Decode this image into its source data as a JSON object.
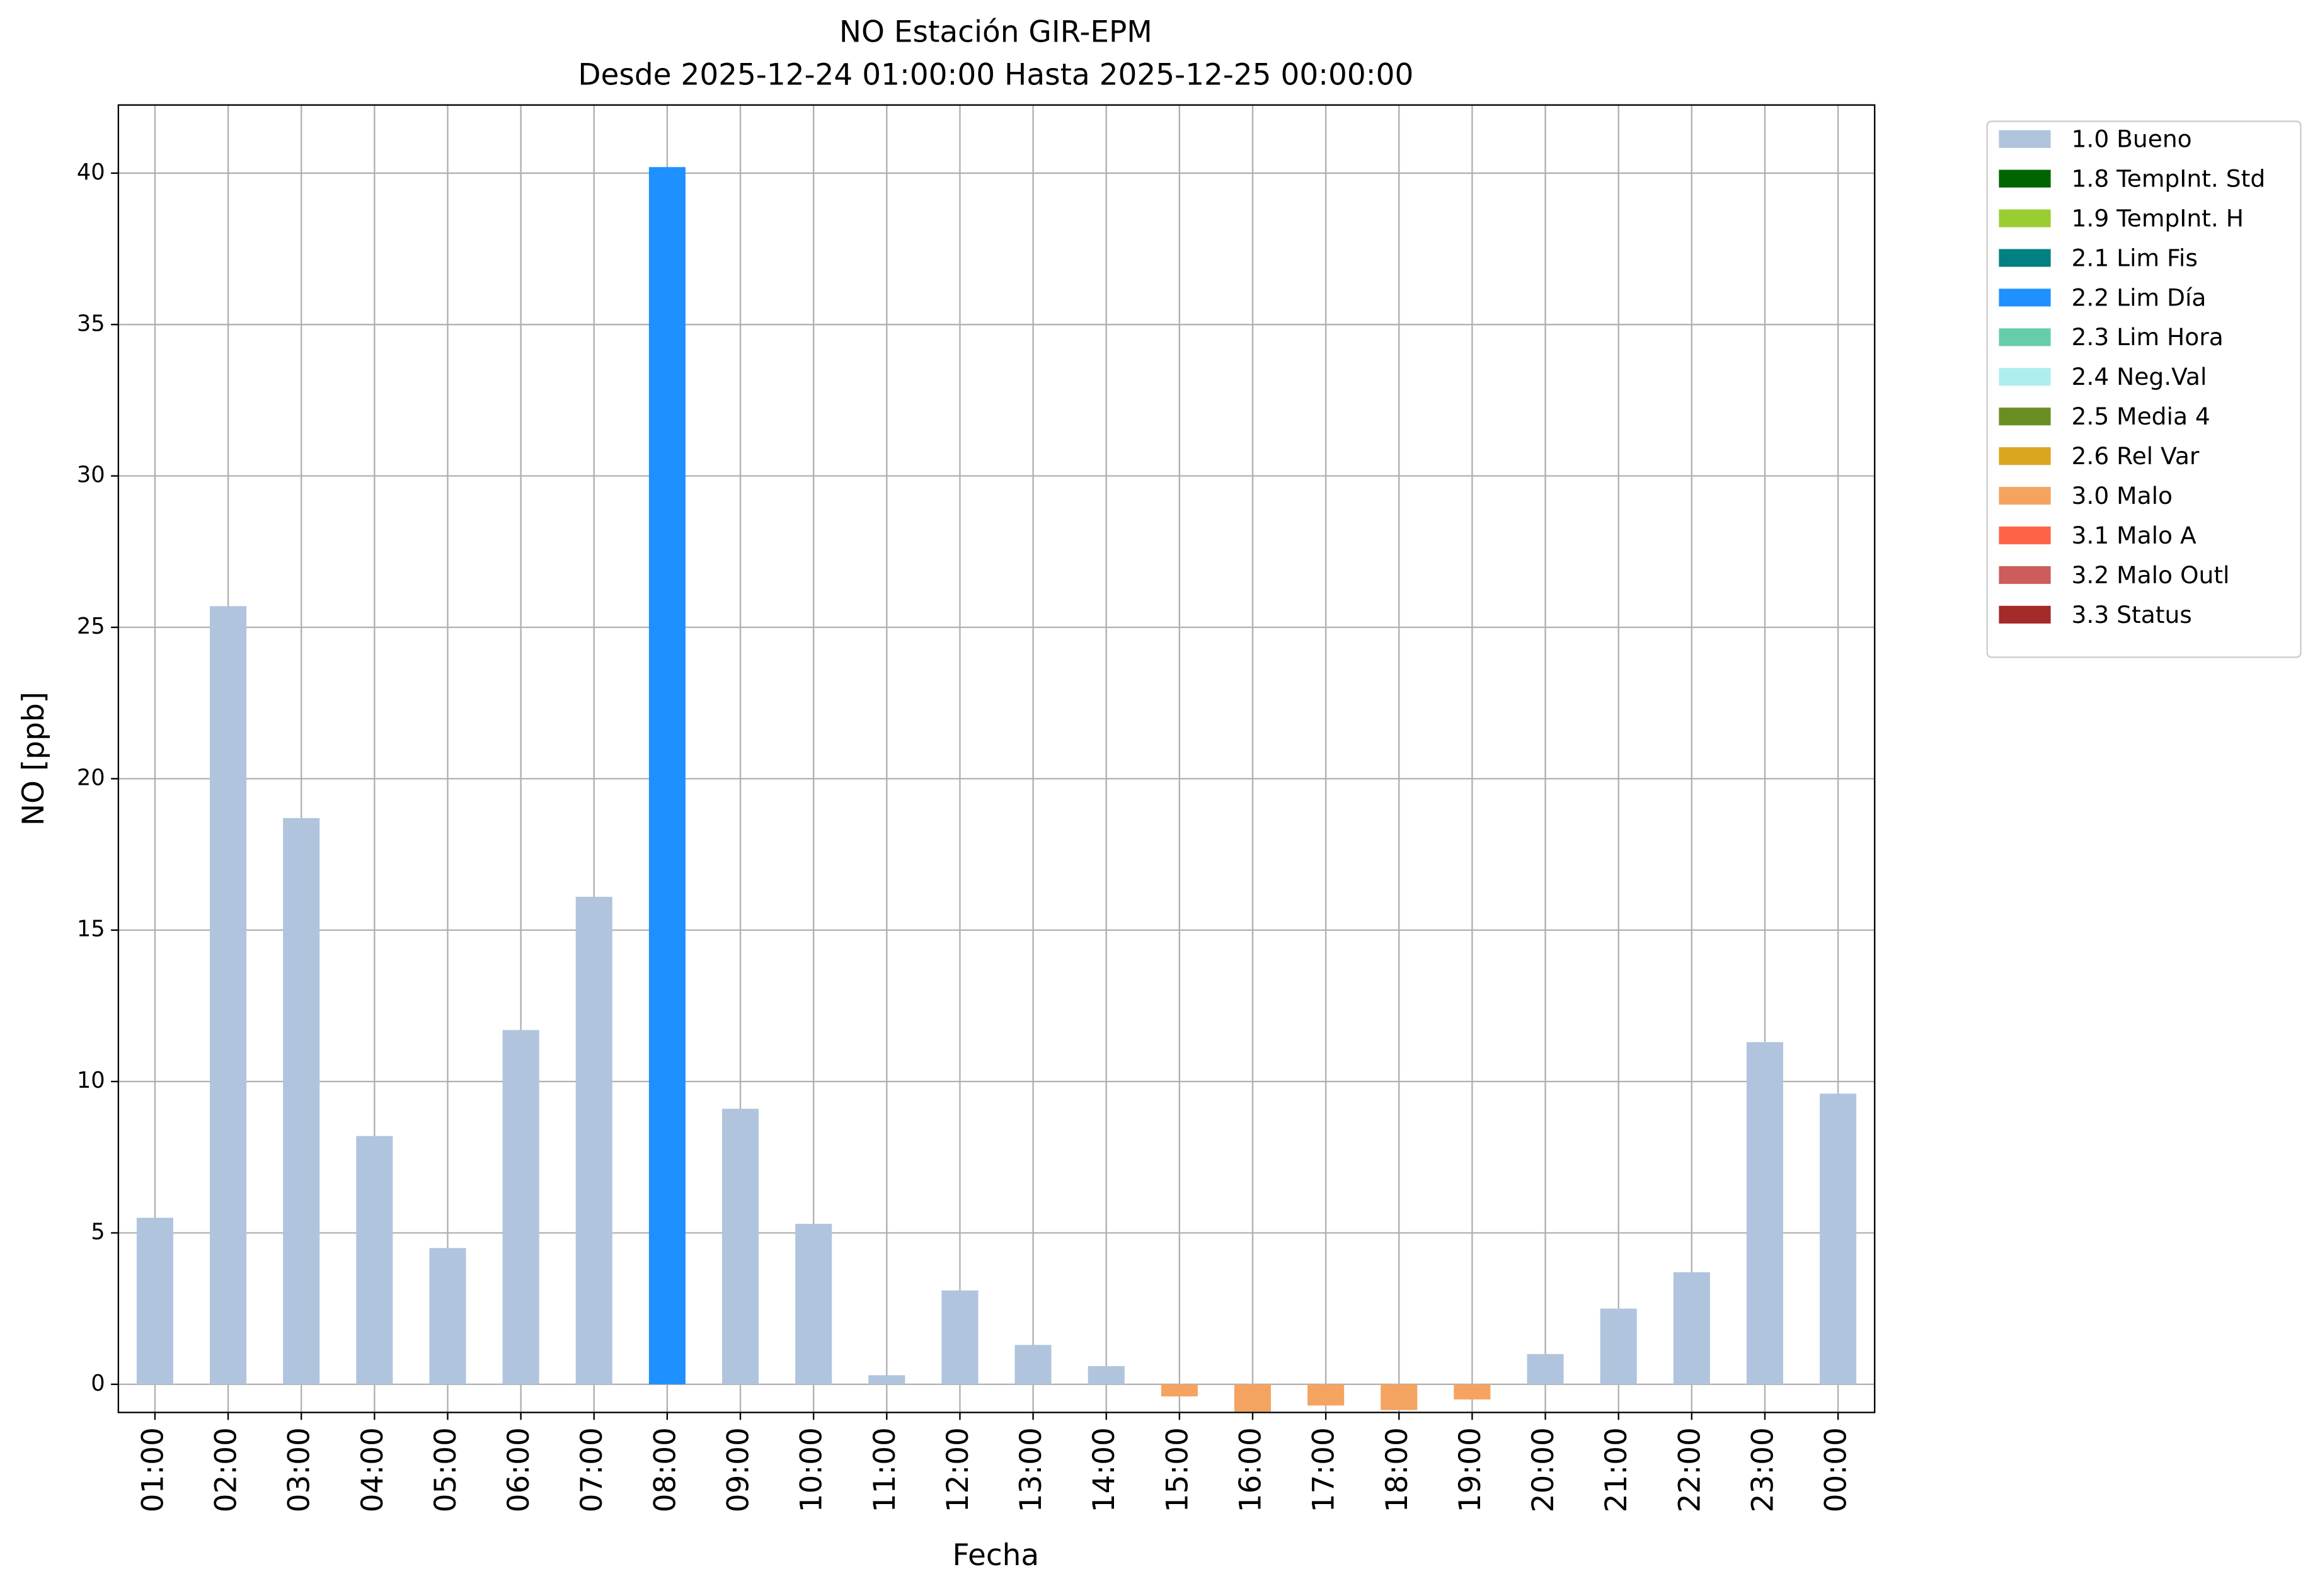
{
  "chart_data": {
    "type": "bar",
    "title": "NO Estación GIR-EPM",
    "subtitle": "Desde 2025-12-24 01:00:00 Hasta 2025-12-25 00:00:00",
    "x_label": "Fecha",
    "y_label": "NO [ppb]",
    "categories": [
      "01:00",
      "02:00",
      "03:00",
      "04:00",
      "05:00",
      "06:00",
      "07:00",
      "08:00",
      "09:00",
      "10:00",
      "11:00",
      "12:00",
      "13:00",
      "14:00",
      "15:00",
      "16:00",
      "17:00",
      "18:00",
      "19:00",
      "20:00",
      "21:00",
      "22:00",
      "23:00",
      "00:00"
    ],
    "series": [
      {
        "name": "1.0 Bueno",
        "color": "#b0c4de",
        "values": [
          5.5,
          25.7,
          18.7,
          8.2,
          4.5,
          11.7,
          16.1,
          null,
          9.1,
          5.3,
          0.3,
          3.1,
          1.3,
          0.6,
          null,
          null,
          null,
          null,
          null,
          1.0,
          2.5,
          3.7,
          11.3,
          9.6
        ]
      },
      {
        "name": "1.8 TempInt. Std",
        "color": "#006400",
        "values": [
          null,
          null,
          null,
          null,
          null,
          null,
          null,
          null,
          null,
          null,
          null,
          null,
          null,
          null,
          null,
          null,
          null,
          null,
          null,
          null,
          null,
          null,
          null,
          null
        ]
      },
      {
        "name": "1.9 TempInt. H",
        "color": "#9acd32",
        "values": [
          null,
          null,
          null,
          null,
          null,
          null,
          null,
          null,
          null,
          null,
          null,
          null,
          null,
          null,
          null,
          null,
          null,
          null,
          null,
          null,
          null,
          null,
          null,
          null
        ]
      },
      {
        "name": "2.1 Lim Fis",
        "color": "#008080",
        "values": [
          null,
          null,
          null,
          null,
          null,
          null,
          null,
          null,
          null,
          null,
          null,
          null,
          null,
          null,
          null,
          null,
          null,
          null,
          null,
          null,
          null,
          null,
          null,
          null
        ]
      },
      {
        "name": "2.2 Lim Día",
        "color": "#1e90ff",
        "values": [
          null,
          null,
          null,
          null,
          null,
          null,
          null,
          40.2,
          null,
          null,
          null,
          null,
          null,
          null,
          null,
          null,
          null,
          null,
          null,
          null,
          null,
          null,
          null,
          null
        ]
      },
      {
        "name": "2.3 Lim Hora",
        "color": "#66cdaa",
        "values": [
          null,
          null,
          null,
          null,
          null,
          null,
          null,
          null,
          null,
          null,
          null,
          null,
          null,
          null,
          null,
          null,
          null,
          null,
          null,
          null,
          null,
          null,
          null,
          null
        ]
      },
      {
        "name": "2.4 Neg.Val",
        "color": "#afeeee",
        "values": [
          null,
          null,
          null,
          null,
          null,
          null,
          null,
          null,
          null,
          null,
          null,
          null,
          null,
          null,
          null,
          null,
          null,
          null,
          null,
          null,
          null,
          null,
          null,
          null
        ]
      },
      {
        "name": "2.5 Media 4",
        "color": "#6b8e23",
        "values": [
          null,
          null,
          null,
          null,
          null,
          null,
          null,
          null,
          null,
          null,
          null,
          null,
          null,
          null,
          null,
          null,
          null,
          null,
          null,
          null,
          null,
          null,
          null,
          null
        ]
      },
      {
        "name": "2.6 Rel Var",
        "color": "#daa520",
        "values": [
          null,
          null,
          null,
          null,
          null,
          null,
          null,
          null,
          null,
          null,
          null,
          null,
          null,
          null,
          null,
          null,
          null,
          null,
          null,
          null,
          null,
          null,
          null,
          null
        ]
      },
      {
        "name": "3.0 Malo",
        "color": "#f4a460",
        "values": [
          null,
          null,
          null,
          null,
          null,
          null,
          null,
          null,
          null,
          null,
          null,
          null,
          null,
          null,
          -0.4,
          -0.9,
          -0.7,
          -0.85,
          -0.5,
          null,
          null,
          null,
          null,
          null
        ]
      },
      {
        "name": "3.1 Malo A",
        "color": "#ff6347",
        "values": [
          null,
          null,
          null,
          null,
          null,
          null,
          null,
          null,
          null,
          null,
          null,
          null,
          null,
          null,
          null,
          null,
          null,
          null,
          null,
          null,
          null,
          null,
          null,
          null
        ]
      },
      {
        "name": "3.2 Malo Outl",
        "color": "#cd5c5c",
        "values": [
          null,
          null,
          null,
          null,
          null,
          null,
          null,
          null,
          null,
          null,
          null,
          null,
          null,
          null,
          null,
          null,
          null,
          null,
          null,
          null,
          null,
          null,
          null,
          null
        ]
      },
      {
        "name": "3.3 Status",
        "color": "#a52a2a",
        "values": [
          null,
          null,
          null,
          null,
          null,
          null,
          null,
          null,
          null,
          null,
          null,
          null,
          null,
          null,
          null,
          null,
          null,
          null,
          null,
          null,
          null,
          null,
          null,
          null
        ]
      }
    ],
    "ylim": [
      -0.93,
      42.25
    ],
    "yticks": [
      0,
      5,
      10,
      15,
      20,
      25,
      30,
      35,
      40
    ],
    "grid": true,
    "legend": "outside-right"
  }
}
